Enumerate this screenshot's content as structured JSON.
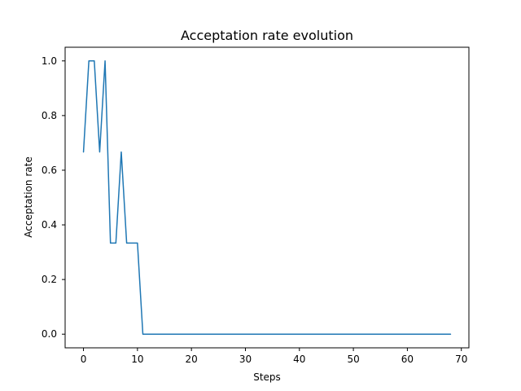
{
  "chart_data": {
    "type": "line",
    "title": "Acceptation rate evolution",
    "xlabel": "Steps",
    "ylabel": "Acceptation rate",
    "xlim": [
      -3.4,
      71.4
    ],
    "ylim": [
      -0.05,
      1.05
    ],
    "xticks": [
      0,
      10,
      20,
      30,
      40,
      50,
      60,
      70
    ],
    "yticks": [
      0.0,
      0.2,
      0.4,
      0.6,
      0.8,
      1.0
    ],
    "xtick_labels": [
      "0",
      "10",
      "20",
      "30",
      "40",
      "50",
      "60",
      "70"
    ],
    "ytick_labels": [
      "0.0",
      "0.2",
      "0.4",
      "0.6",
      "0.8",
      "1.0"
    ],
    "grid": false,
    "series": [
      {
        "color": "#1f77b4",
        "x": [
          0,
          1,
          2,
          3,
          4,
          5,
          6,
          7,
          8,
          9,
          10,
          11,
          12,
          13,
          14,
          15,
          16,
          17,
          18,
          19,
          20,
          21,
          22,
          23,
          24,
          25,
          26,
          27,
          28,
          29,
          30,
          31,
          32,
          33,
          34,
          35,
          36,
          37,
          38,
          39,
          40,
          41,
          42,
          43,
          44,
          45,
          46,
          47,
          48,
          49,
          50,
          51,
          52,
          53,
          54,
          55,
          56,
          57,
          58,
          59,
          60,
          61,
          62,
          63,
          64,
          65,
          66,
          67,
          68
        ],
        "values": [
          0.6667,
          1.0,
          1.0,
          0.6667,
          1.0,
          0.3333,
          0.3333,
          0.6667,
          0.3333,
          0.3333,
          0.3333,
          0.0,
          0.0,
          0.0,
          0.0,
          0.0,
          0.0,
          0.0,
          0.0,
          0.0,
          0.0,
          0.0,
          0.0,
          0.0,
          0.0,
          0.0,
          0.0,
          0.0,
          0.0,
          0.0,
          0.0,
          0.0,
          0.0,
          0.0,
          0.0,
          0.0,
          0.0,
          0.0,
          0.0,
          0.0,
          0.0,
          0.0,
          0.0,
          0.0,
          0.0,
          0.0,
          0.0,
          0.0,
          0.0,
          0.0,
          0.0,
          0.0,
          0.0,
          0.0,
          0.0,
          0.0,
          0.0,
          0.0,
          0.0,
          0.0,
          0.0,
          0.0,
          0.0,
          0.0,
          0.0,
          0.0,
          0.0,
          0.0,
          0.0
        ]
      }
    ]
  }
}
